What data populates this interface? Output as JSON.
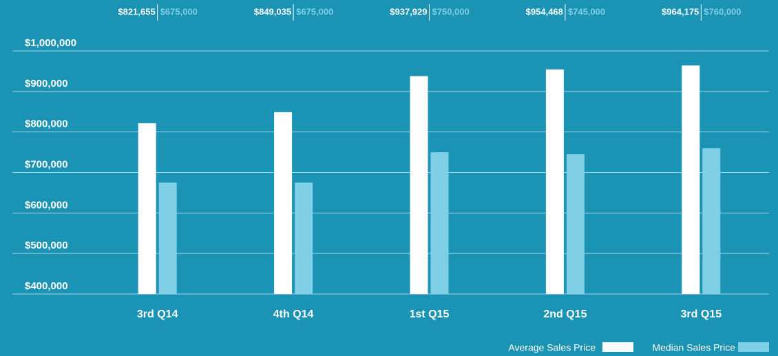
{
  "chart_data": {
    "type": "bar",
    "categories": [
      "3rd Q14",
      "4th Q14",
      "1st Q15",
      "2nd Q15",
      "3rd Q15"
    ],
    "series": [
      {
        "name": "Average Sales Price",
        "color": "#ffffff",
        "values": [
          821655,
          849035,
          937929,
          954468,
          964175
        ],
        "value_labels": [
          "$821,655",
          "$849,035",
          "$937,929",
          "$954,468",
          "$964,175"
        ]
      },
      {
        "name": "Median Sales Price",
        "color": "#7fd0e6",
        "values": [
          675000,
          675000,
          750000,
          745000,
          760000
        ],
        "value_labels": [
          "$675,000",
          "$675,000",
          "$750,000",
          "$745,000",
          "$760,000"
        ]
      }
    ],
    "ylim": [
      400000,
      1000000
    ],
    "yticks": [
      {
        "value": 400000,
        "label": "$400,000"
      },
      {
        "value": 500000,
        "label": "$500,000"
      },
      {
        "value": 600000,
        "label": "$600,000"
      },
      {
        "value": 700000,
        "label": "$700,000"
      },
      {
        "value": 800000,
        "label": "$800,000"
      },
      {
        "value": 900000,
        "label": "$900,000"
      },
      {
        "value": 1000000,
        "label": "$1,000,000"
      }
    ],
    "grid": true,
    "legend": "bottom-right"
  }
}
